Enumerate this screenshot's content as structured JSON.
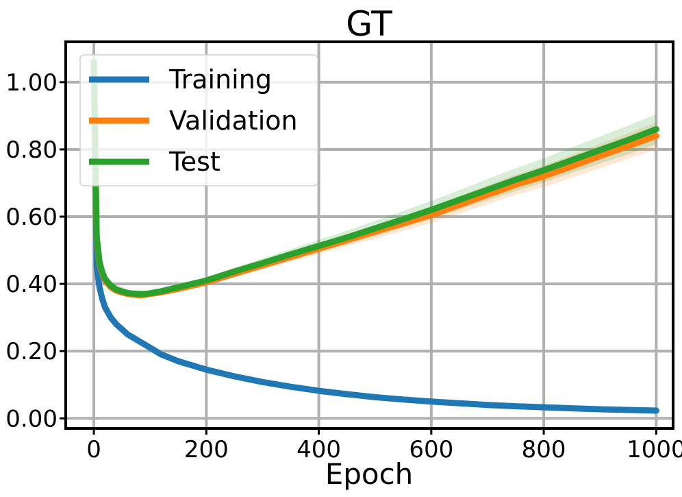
{
  "chart_data": {
    "type": "line",
    "title": "GT",
    "xlabel": "Epoch",
    "ylabel": "",
    "xlim": [
      -50,
      1030
    ],
    "ylim": [
      -0.03,
      1.12
    ],
    "xticks": [
      0,
      200,
      400,
      600,
      800,
      1000
    ],
    "xtick_labels": [
      "0",
      "200",
      "400",
      "600",
      "800",
      "1000"
    ],
    "yticks": [
      0.0,
      0.2,
      0.4,
      0.6,
      0.8,
      1.0
    ],
    "ytick_labels": [
      "0.00",
      "0.20",
      "0.40",
      "0.60",
      "0.80",
      "1.00"
    ],
    "grid": true,
    "legend_position": "top-left",
    "x": [
      0,
      5,
      10,
      15,
      20,
      30,
      40,
      50,
      60,
      70,
      80,
      90,
      100,
      120,
      150,
      200,
      250,
      300,
      350,
      400,
      450,
      500,
      550,
      600,
      650,
      700,
      750,
      800,
      850,
      900,
      950,
      1000
    ],
    "series": [
      {
        "name": "Training",
        "color": "#1f77b4",
        "values": [
          1.06,
          0.45,
          0.39,
          0.355,
          0.33,
          0.3,
          0.28,
          0.265,
          0.25,
          0.24,
          0.23,
          0.22,
          0.21,
          0.19,
          0.17,
          0.145,
          0.125,
          0.108,
          0.094,
          0.082,
          0.072,
          0.063,
          0.056,
          0.05,
          0.045,
          0.04,
          0.036,
          0.033,
          0.03,
          0.027,
          0.025,
          0.023
        ]
      },
      {
        "name": "Validation",
        "color": "#ff7f0e",
        "band": 0.04,
        "values": [
          1.06,
          0.53,
          0.46,
          0.43,
          0.41,
          0.39,
          0.38,
          0.375,
          0.37,
          0.368,
          0.366,
          0.367,
          0.37,
          0.375,
          0.385,
          0.405,
          0.43,
          0.455,
          0.48,
          0.505,
          0.53,
          0.555,
          0.58,
          0.605,
          0.635,
          0.665,
          0.695,
          0.72,
          0.75,
          0.78,
          0.81,
          0.84
        ]
      },
      {
        "name": "Test",
        "color": "#2ca02c",
        "band": 0.045,
        "values": [
          1.06,
          0.54,
          0.465,
          0.435,
          0.415,
          0.395,
          0.383,
          0.378,
          0.373,
          0.371,
          0.37,
          0.37,
          0.372,
          0.378,
          0.39,
          0.41,
          0.437,
          0.462,
          0.488,
          0.513,
          0.538,
          0.565,
          0.592,
          0.62,
          0.65,
          0.68,
          0.71,
          0.738,
          0.768,
          0.798,
          0.828,
          0.86
        ]
      }
    ]
  }
}
